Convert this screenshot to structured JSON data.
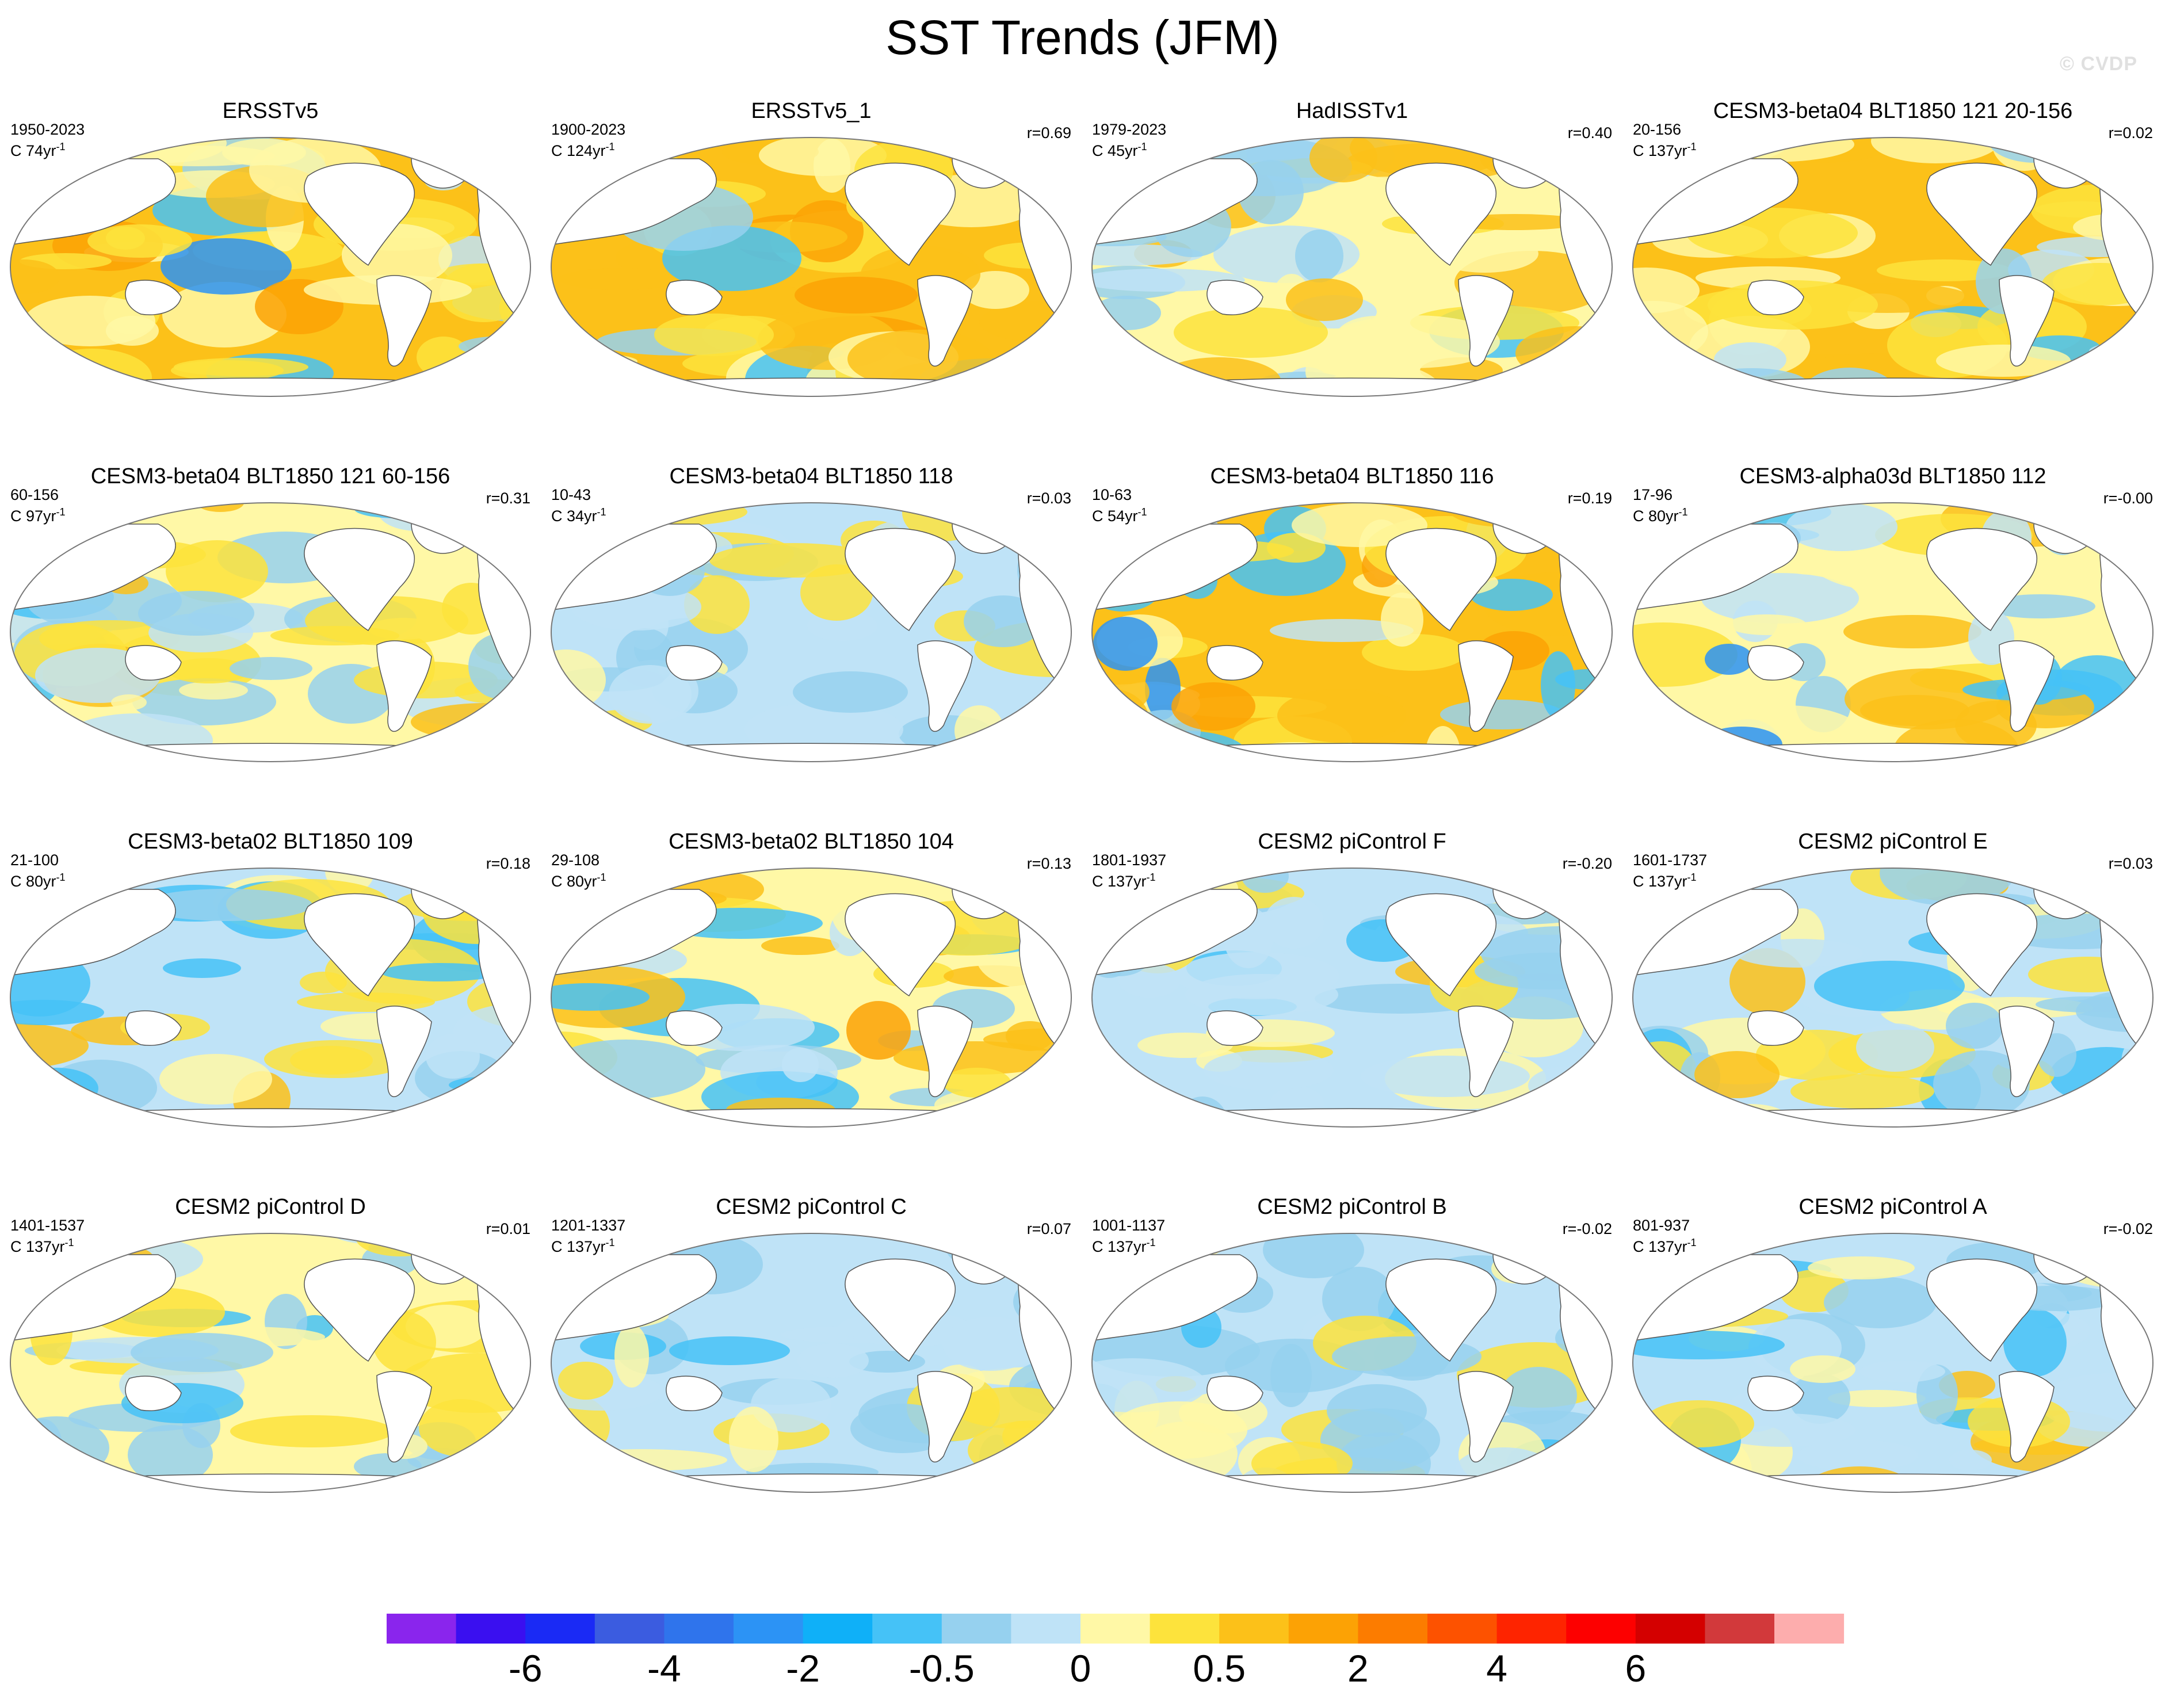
{
  "figure": {
    "title": "SST Trends (JFM)",
    "credit": "© CVDP"
  },
  "panels": [
    {
      "title": "ERSSTv5",
      "period": "1950-2023",
      "scale": "C 74yr",
      "r": "",
      "tone": [
        0.85,
        0.8
      ]
    },
    {
      "title": "ERSSTv5_1",
      "period": "1900-2023",
      "scale": "C 124yr",
      "r": "r=0.69",
      "tone": [
        0.9,
        0.85
      ]
    },
    {
      "title": "HadISSTv1",
      "period": "1979-2023",
      "scale": "C 45yr",
      "r": "r=0.40",
      "tone": [
        0.55,
        0.6
      ]
    },
    {
      "title": "CESM3-beta04 BLT1850 121 20-156",
      "period": "20-156",
      "scale": "C 137yr",
      "r": "r=0.02",
      "tone": [
        0.7,
        0.55
      ]
    },
    {
      "title": "CESM3-beta04 BLT1850 121 60-156",
      "period": "60-156",
      "scale": "C 97yr",
      "r": "r=0.31",
      "tone": [
        0.5,
        0.4
      ]
    },
    {
      "title": "CESM3-beta04 BLT1850 118",
      "period": "10-43",
      "scale": "C 34yr",
      "r": "r=0.03",
      "tone": [
        0.4,
        0.25
      ]
    },
    {
      "title": "CESM3-beta04 BLT1850 116",
      "period": "10-63",
      "scale": "C 54yr",
      "r": "r=0.19",
      "tone": [
        0.65,
        0.75
      ]
    },
    {
      "title": "CESM3-alpha03d BLT1850 112",
      "period": "17-96",
      "scale": "C 80yr",
      "r": "r=-0.00",
      "tone": [
        0.55,
        0.7
      ]
    },
    {
      "title": "CESM3-beta02 BLT1850 109",
      "period": "21-100",
      "scale": "C 80yr",
      "r": "r=0.18",
      "tone": [
        0.45,
        0.6
      ]
    },
    {
      "title": "CESM3-beta02 BLT1850 104",
      "period": "29-108",
      "scale": "C 80yr",
      "r": "r=0.13",
      "tone": [
        0.5,
        0.7
      ]
    },
    {
      "title": "CESM2 piControl F",
      "period": "1801-1937",
      "scale": "C 137yr",
      "r": "r=-0.20",
      "tone": [
        0.45,
        0.45
      ]
    },
    {
      "title": "CESM2 piControl E",
      "period": "1601-1737",
      "scale": "C 137yr",
      "r": "r=0.03",
      "tone": [
        0.45,
        0.45
      ]
    },
    {
      "title": "CESM2 piControl D",
      "period": "1401-1537",
      "scale": "C 137yr",
      "r": "r=0.01",
      "tone": [
        0.5,
        0.45
      ]
    },
    {
      "title": "CESM2 piControl C",
      "period": "1201-1337",
      "scale": "C 137yr",
      "r": "r=0.07",
      "tone": [
        0.45,
        0.45
      ]
    },
    {
      "title": "CESM2 piControl B",
      "period": "1001-1137",
      "scale": "C 137yr",
      "r": "r=-0.02",
      "tone": [
        0.4,
        0.45
      ]
    },
    {
      "title": "CESM2 piControl A",
      "period": "801-937",
      "scale": "C 137yr",
      "r": "r=-0.02",
      "tone": [
        0.4,
        0.45
      ]
    }
  ],
  "colorbar": {
    "colors": [
      "#8a25ed",
      "#3a0ff0",
      "#1a2af5",
      "#3b5ce0",
      "#2f74ec",
      "#2c93f5",
      "#0fb0f8",
      "#45c2f7",
      "#96d1ef",
      "#bfe3f7",
      "#fff8a6",
      "#fde33c",
      "#fcc119",
      "#fca205",
      "#fc7c00",
      "#fd5200",
      "#fe2400",
      "#fd0000",
      "#d40000",
      "#d2393b",
      "#fdadad"
    ],
    "tick_labels": [
      "-6",
      "-4",
      "-2",
      "-0.5",
      "0",
      "0.5",
      "2",
      "4",
      "6"
    ],
    "tick_boxes": [
      2,
      4,
      6,
      8,
      10,
      12,
      14,
      16,
      18
    ]
  }
}
